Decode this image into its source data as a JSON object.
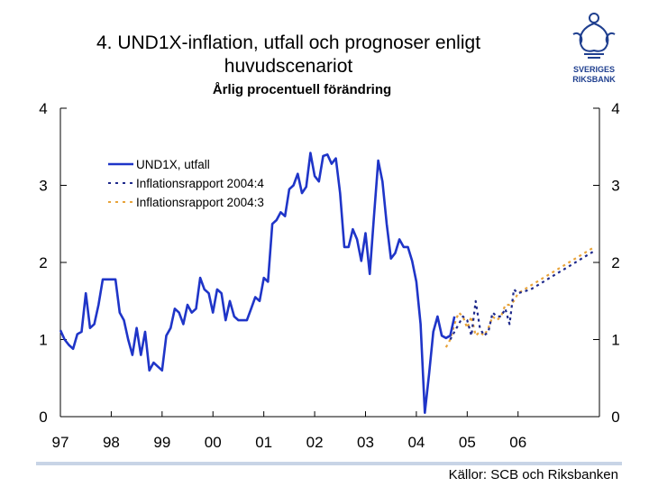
{
  "slide": {
    "title_line1": "4. UND1X-inflation, utfall och prognoser enligt",
    "title_line2": "huvudscenariot",
    "subtitle": "Årlig procentuell förändring",
    "source": "Källor: SCB och Riksbanken",
    "logo_text_line1": "SVERIGES",
    "logo_text_line2": "RIKSBANK",
    "logo_color": "#1f3f8f"
  },
  "chart_data": {
    "type": "line",
    "title": "UND1X-inflation, utfall och prognoser enligt huvudscenariot",
    "ylabel": "Årlig procentuell förändring",
    "ylim": [
      0,
      4
    ],
    "yticks": [
      0,
      1,
      2,
      3,
      4
    ],
    "ytick_labels": [
      "0",
      "1",
      "2",
      "3",
      "4"
    ],
    "xlim": [
      1997,
      2007.6
    ],
    "xticks": [
      1997,
      1998,
      1999,
      2000,
      2001,
      2002,
      2003,
      2004,
      2005,
      2006
    ],
    "xtick_labels": [
      "97",
      "98",
      "99",
      "00",
      "01",
      "02",
      "03",
      "04",
      "05",
      "06"
    ],
    "legend_position": "top-left",
    "series": [
      {
        "name": "UND1X, utfall",
        "style": "solid",
        "color": "#1f35c8",
        "x": [
          1997.0,
          1997.083,
          1997.167,
          1997.25,
          1997.333,
          1997.417,
          1997.5,
          1997.583,
          1997.667,
          1997.75,
          1997.833,
          1997.917,
          1998.0,
          1998.083,
          1998.167,
          1998.25,
          1998.333,
          1998.417,
          1998.5,
          1998.583,
          1998.667,
          1998.75,
          1998.833,
          1998.917,
          1999.0,
          1999.083,
          1999.167,
          1999.25,
          1999.333,
          1999.417,
          1999.5,
          1999.583,
          1999.667,
          1999.75,
          1999.833,
          1999.917,
          2000.0,
          2000.083,
          2000.167,
          2000.25,
          2000.333,
          2000.417,
          2000.5,
          2000.583,
          2000.667,
          2000.75,
          2000.833,
          2000.917,
          2001.0,
          2001.083,
          2001.167,
          2001.25,
          2001.333,
          2001.417,
          2001.5,
          2001.583,
          2001.667,
          2001.75,
          2001.833,
          2001.917,
          2002.0,
          2002.083,
          2002.167,
          2002.25,
          2002.333,
          2002.417,
          2002.5,
          2002.583,
          2002.667,
          2002.75,
          2002.833,
          2002.917,
          2003.0,
          2003.083,
          2003.167,
          2003.25,
          2003.333,
          2003.417,
          2003.5,
          2003.583,
          2003.667,
          2003.75,
          2003.833,
          2003.917,
          2004.0,
          2004.083,
          2004.167,
          2004.25,
          2004.333,
          2004.417,
          2004.5,
          2004.583,
          2004.667,
          2004.75
        ],
        "values": [
          1.12,
          1.0,
          0.93,
          0.88,
          1.07,
          1.1,
          1.6,
          1.15,
          1.2,
          1.45,
          1.78,
          1.78,
          1.78,
          1.78,
          1.35,
          1.25,
          1.0,
          0.8,
          1.15,
          0.8,
          1.1,
          0.6,
          0.7,
          0.65,
          0.6,
          1.05,
          1.15,
          1.4,
          1.35,
          1.2,
          1.45,
          1.35,
          1.4,
          1.8,
          1.65,
          1.6,
          1.35,
          1.65,
          1.6,
          1.25,
          1.5,
          1.3,
          1.25,
          1.25,
          1.25,
          1.4,
          1.55,
          1.5,
          1.8,
          1.75,
          2.5,
          2.55,
          2.65,
          2.6,
          2.95,
          3.0,
          3.15,
          2.9,
          2.98,
          3.42,
          3.12,
          3.05,
          3.38,
          3.4,
          3.28,
          3.35,
          2.9,
          2.2,
          2.2,
          2.43,
          2.3,
          2.02,
          2.38,
          1.85,
          2.6,
          3.32,
          3.05,
          2.5,
          2.05,
          2.12,
          2.3,
          2.2,
          2.2,
          2.02,
          1.75,
          1.2,
          0.05,
          0.55,
          1.1,
          1.3,
          1.05,
          1.02,
          1.05,
          1.3
        ]
      },
      {
        "name": "Inflationsrapport 2004:4",
        "style": "dashed",
        "color": "#1f2a8c",
        "x": [
          2004.667,
          2004.75,
          2004.833,
          2004.917,
          2005.0,
          2005.083,
          2005.167,
          2005.25,
          2005.333,
          2005.417,
          2005.5,
          2005.583,
          2005.667,
          2005.75,
          2005.833,
          2005.917,
          2006.0,
          2006.25,
          2006.5,
          2006.75,
          2007.0,
          2007.25,
          2007.5
        ],
        "values": [
          1.0,
          1.1,
          1.2,
          1.3,
          1.25,
          1.05,
          1.5,
          1.15,
          1.05,
          1.1,
          1.35,
          1.3,
          1.3,
          1.4,
          1.2,
          1.65,
          1.6,
          1.65,
          1.75,
          1.85,
          1.95,
          2.05,
          2.15
        ]
      },
      {
        "name": "Inflationsrapport 2004:3",
        "style": "dashed",
        "color": "#e8a33a",
        "x": [
          2004.583,
          2004.667,
          2004.75,
          2004.833,
          2004.917,
          2005.0,
          2005.083,
          2005.167,
          2005.25,
          2005.333,
          2005.417,
          2005.5,
          2005.583,
          2005.667,
          2005.75,
          2005.833,
          2005.917,
          2006.0,
          2006.25,
          2006.5,
          2006.75,
          2007.0,
          2007.25,
          2007.5
        ],
        "values": [
          0.9,
          1.0,
          1.2,
          1.35,
          1.3,
          1.15,
          1.3,
          1.05,
          1.1,
          1.05,
          1.15,
          1.3,
          1.25,
          1.3,
          1.45,
          1.45,
          1.5,
          1.6,
          1.7,
          1.8,
          1.9,
          2.0,
          2.1,
          2.2
        ]
      }
    ]
  }
}
